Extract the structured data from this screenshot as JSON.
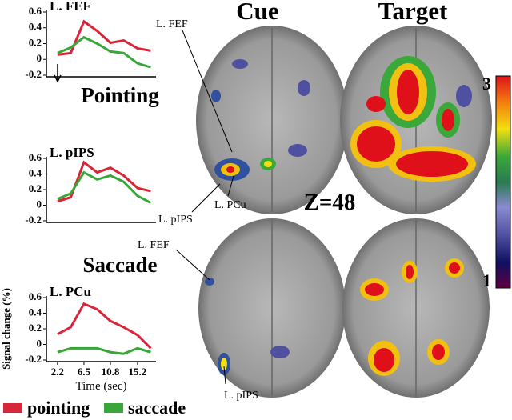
{
  "chart_data": [
    {
      "type": "line",
      "title": "L. FEF",
      "x": [
        2.2,
        4.35,
        6.5,
        8.65,
        10.8,
        12.95,
        15.2,
        17.35
      ],
      "series": [
        {
          "color": "#d9243a",
          "values": [
            0.06,
            0.08,
            0.48,
            0.36,
            0.21,
            0.24,
            0.14,
            0.11
          ]
        },
        {
          "color": "#3aa63a",
          "values": [
            0.08,
            0.15,
            0.28,
            0.2,
            0.1,
            0.08,
            -0.05,
            -0.1
          ]
        }
      ],
      "xlim": [
        0.4,
        18.2
      ],
      "ylim": [
        -0.2,
        0.6
      ],
      "yticks": [
        0.6,
        0.4,
        0.2,
        0,
        -0.2
      ]
    },
    {
      "type": "line",
      "title": "L. pIPS",
      "x": [
        2.2,
        4.35,
        6.5,
        8.65,
        10.8,
        12.95,
        15.2,
        17.35
      ],
      "series": [
        {
          "color": "#d9243a",
          "values": [
            0.05,
            0.1,
            0.55,
            0.42,
            0.48,
            0.38,
            0.22,
            0.18
          ]
        },
        {
          "color": "#3aa63a",
          "values": [
            0.08,
            0.15,
            0.42,
            0.33,
            0.38,
            0.3,
            0.12,
            0.03
          ]
        }
      ],
      "xlim": [
        0.4,
        18.2
      ],
      "ylim": [
        -0.2,
        0.6
      ],
      "yticks": [
        0.6,
        0.4,
        0.2,
        0,
        -0.2
      ]
    },
    {
      "type": "line",
      "title": "L. PCu",
      "xlabel": "Time (sec)",
      "ylabel": "Signal change (%)",
      "x": [
        2.2,
        4.35,
        6.5,
        8.65,
        10.8,
        12.95,
        15.2,
        17.35
      ],
      "series": [
        {
          "name": "pointing",
          "color": "#d9243a",
          "values": [
            0.13,
            0.22,
            0.52,
            0.45,
            0.3,
            0.22,
            0.12,
            -0.05
          ]
        },
        {
          "name": "saccade",
          "color": "#3aa63a",
          "values": [
            -0.1,
            -0.05,
            -0.05,
            -0.05,
            -0.1,
            -0.12,
            -0.05,
            -0.1
          ]
        }
      ],
      "xlim": [
        0.4,
        18.2
      ],
      "xticks": [
        2.2,
        6.5,
        10.8,
        15.2
      ],
      "ylim": [
        -0.2,
        0.6
      ],
      "yticks": [
        0.6,
        0.4,
        0.2,
        0,
        -0.2
      ]
    }
  ],
  "panels": {
    "rows": [
      "Pointing",
      "Saccade"
    ],
    "columns": [
      "Cue",
      "Target"
    ],
    "slice": "Z=48",
    "colorbar_ticks": [
      3,
      1
    ],
    "brain_labels": [
      "L. FEF",
      "L. pIPS",
      "L. PCu",
      "L. FEF",
      "L. pIPS"
    ]
  }
}
